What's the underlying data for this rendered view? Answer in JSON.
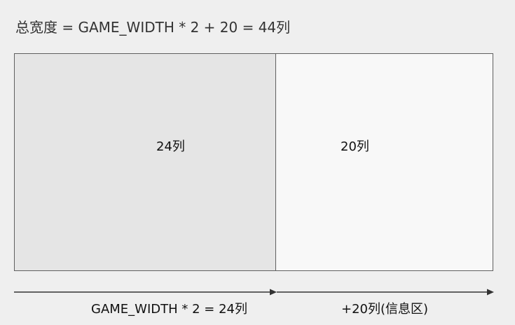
{
  "diagram": {
    "title": "总宽度 = GAME_WIDTH * 2 + 20 = 44列",
    "panels": {
      "left": {
        "label": "24列",
        "fill": "#e5e5e5"
      },
      "right": {
        "label": "20列",
        "fill": "#f8f8f8"
      }
    },
    "dimensions": {
      "left": {
        "label": "GAME_WIDTH * 2 = 24列"
      },
      "right": {
        "label": "+20列(信息区)"
      }
    },
    "colors": {
      "border": "#5f5f5f",
      "arrow": "#333333",
      "background": "#efefef"
    }
  }
}
